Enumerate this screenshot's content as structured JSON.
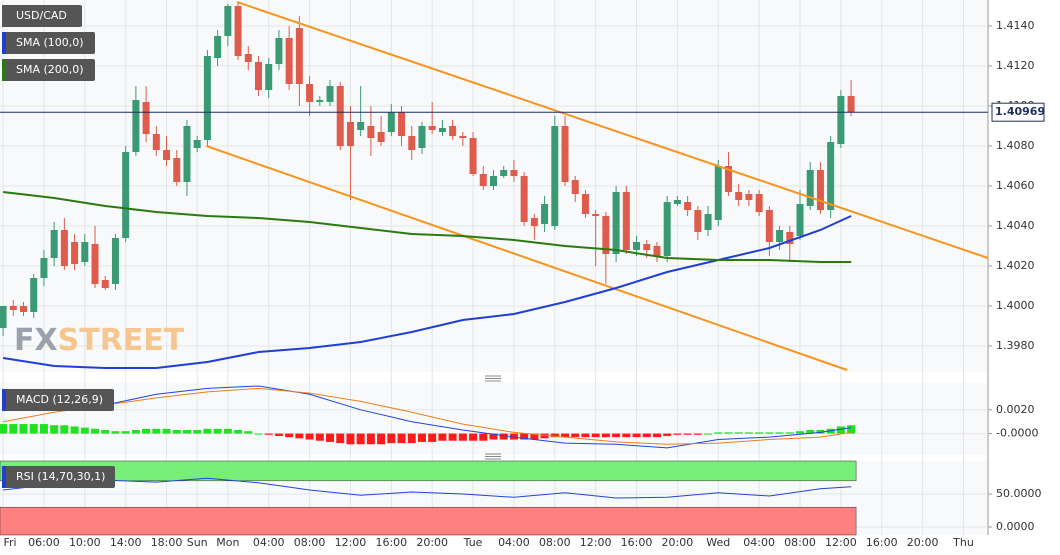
{
  "chart_data": [
    {
      "type": "candlestick",
      "title": "USD/CAD",
      "open": [
        1.3989,
        1.4,
        1.4,
        1.3997,
        1.4014,
        1.4024,
        1.4038,
        1.4032,
        1.4022,
        1.4031,
        1.4013,
        1.4011,
        1.4034,
        1.4077,
        1.4102,
        1.4086,
        1.4078,
        1.4074,
        1.4062,
        1.4079,
        1.4083,
        1.4124,
        1.4135,
        1.415,
        1.4126,
        1.4122,
        1.4108,
        1.4121,
        1.4134,
        1.4139,
        1.4111,
        1.4102,
        1.4102,
        1.411,
        1.4092,
        1.4088,
        1.409,
        1.4087,
        1.4087,
        1.4097,
        1.4085,
        1.4079,
        1.409,
        1.4087,
        1.409,
        1.4085,
        1.4084,
        1.4066,
        1.406,
        1.4065,
        1.4068,
        1.4065,
        1.4044,
        1.4041,
        1.404,
        1.409,
        1.4063,
        1.4056,
        1.4046,
        1.4045,
        1.4026,
        1.4057,
        1.4028,
        1.4031,
        1.403,
        1.4025,
        1.4051,
        1.4052,
        1.4048,
        1.4038,
        1.4043,
        1.407,
        1.4057,
        1.4056,
        1.4056,
        1.4048,
        1.4032,
        1.4037,
        1.4035,
        1.405,
        1.4068,
        1.4048,
        1.4081,
        1.4105
      ],
      "high": [
        1.4,
        1.4003,
        1.4002,
        1.4016,
        1.4028,
        1.4042,
        1.4044,
        1.4036,
        1.4036,
        1.404,
        1.4015,
        1.4036,
        1.408,
        1.411,
        1.411,
        1.409,
        1.4085,
        1.4078,
        1.4093,
        1.4085,
        1.4128,
        1.4138,
        1.4151,
        1.4152,
        1.413,
        1.4125,
        1.4124,
        1.4138,
        1.414,
        1.4145,
        1.4115,
        1.4105,
        1.4113,
        1.4112,
        1.41,
        1.411,
        1.41,
        1.4095,
        1.4101,
        1.41,
        1.409,
        1.4092,
        1.4102,
        1.4093,
        1.4093,
        1.4087,
        1.4087,
        1.407,
        1.4068,
        1.407,
        1.4073,
        1.4067,
        1.4046,
        1.4055,
        1.4095,
        1.4095,
        1.4065,
        1.4058,
        1.4048,
        1.4047,
        1.406,
        1.406,
        1.4035,
        1.4033,
        1.4032,
        1.4055,
        1.4055,
        1.4055,
        1.405,
        1.405,
        1.4073,
        1.4077,
        1.4061,
        1.4058,
        1.4058,
        1.405,
        1.404,
        1.404,
        1.4058,
        1.4072,
        1.4072,
        1.4085,
        1.4108,
        1.4113
      ],
      "low": [
        1.3985,
        1.3995,
        1.3995,
        1.3994,
        1.401,
        1.402,
        1.4018,
        1.4018,
        1.402,
        1.4009,
        1.4008,
        1.4008,
        1.4032,
        1.4075,
        1.4082,
        1.4075,
        1.407,
        1.406,
        1.4055,
        1.4077,
        1.408,
        1.412,
        1.413,
        1.4123,
        1.4118,
        1.4105,
        1.4104,
        1.4118,
        1.4108,
        1.41,
        1.4095,
        1.41,
        1.41,
        1.4078,
        1.4053,
        1.4085,
        1.4075,
        1.408,
        1.4085,
        1.408,
        1.4073,
        1.4076,
        1.4086,
        1.4085,
        1.4083,
        1.408,
        1.4065,
        1.4058,
        1.4058,
        1.4064,
        1.4062,
        1.404,
        1.4033,
        1.4037,
        1.4038,
        1.406,
        1.4052,
        1.4044,
        1.402,
        1.4011,
        1.4022,
        1.4026,
        1.4025,
        1.4024,
        1.4022,
        1.4022,
        1.405,
        1.4045,
        1.4033,
        1.4035,
        1.404,
        1.4055,
        1.405,
        1.405,
        1.4045,
        1.4025,
        1.4028,
        1.4022,
        1.4033,
        1.4048,
        1.4046,
        1.4044,
        1.4079,
        1.4095
      ],
      "close": [
        1.4,
        1.3998,
        1.3997,
        1.4014,
        1.4024,
        1.4038,
        1.402,
        1.4021,
        1.4032,
        1.4011,
        1.4009,
        1.4034,
        1.4077,
        1.4103,
        1.4086,
        1.4078,
        1.4073,
        1.4062,
        1.409,
        1.4083,
        1.4125,
        1.4135,
        1.415,
        1.4125,
        1.4122,
        1.4108,
        1.4121,
        1.4134,
        1.4111,
        1.4111,
        1.4102,
        1.4103,
        1.411,
        1.408,
        1.408,
        1.4092,
        1.4084,
        1.4082,
        1.4097,
        1.4085,
        1.4078,
        1.409,
        1.4088,
        1.4089,
        1.4085,
        1.4084,
        1.4066,
        1.406,
        1.4065,
        1.4068,
        1.4065,
        1.4042,
        1.404,
        1.4051,
        1.409,
        1.4062,
        1.4056,
        1.4046,
        1.4045,
        1.4026,
        1.4057,
        1.4028,
        1.4032,
        1.4028,
        1.4025,
        1.4052,
        1.4053,
        1.4048,
        1.4037,
        1.4046,
        1.407,
        1.4057,
        1.4053,
        1.4053,
        1.4047,
        1.4032,
        1.4038,
        1.4031,
        1.4051,
        1.4068,
        1.4048,
        1.4082,
        1.4105,
        1.4097
      ],
      "color_up": "#3a9a74",
      "color_down": "#dd5c4c",
      "series": [
        {
          "name": "SMA (100,0)",
          "color": "#1f3fd4",
          "x": [
            0,
            5,
            10,
            15,
            20,
            25,
            30,
            35,
            40,
            45,
            50,
            55,
            60,
            65,
            70,
            75,
            80,
            83
          ],
          "values": [
            1.3974,
            1.397,
            1.3969,
            1.3969,
            1.3972,
            1.3977,
            1.3979,
            1.3982,
            1.3987,
            1.3993,
            1.3996,
            1.4002,
            1.4009,
            1.4017,
            1.4023,
            1.4029,
            1.4038,
            1.4045
          ]
        },
        {
          "name": "SMA (200,0)",
          "color": "#2a7a12",
          "x": [
            0,
            5,
            10,
            15,
            20,
            25,
            30,
            35,
            40,
            45,
            50,
            55,
            60,
            65,
            70,
            75,
            80,
            83
          ],
          "values": [
            1.4057,
            1.4054,
            1.405,
            1.4047,
            1.4045,
            1.4044,
            1.4042,
            1.4039,
            1.4036,
            1.4035,
            1.4033,
            1.403,
            1.4028,
            1.4024,
            1.4023,
            1.4023,
            1.4022,
            1.4022
          ]
        }
      ],
      "trendline_color": "#f7941d",
      "trendlines": [
        {
          "x": [
            22.9,
            96.4
          ],
          "values": [
            1.4152,
            1.4024
          ]
        },
        {
          "x": [
            19.9,
            82.6
          ],
          "values": [
            1.408,
            1.3968
          ]
        }
      ],
      "last_price": 1.40969,
      "last_price_color": "#1f2f5c",
      "watermark": [
        "FX",
        "STREET"
      ],
      "xlim": [
        -0.3,
        96.4
      ],
      "ylim": [
        1.3967,
        1.4153
      ],
      "yticks": [
        {
          "value": 1.398,
          "label": "1.3980"
        },
        {
          "value": 1.4,
          "label": "1.4000"
        },
        {
          "value": 1.402,
          "label": "1.4020"
        },
        {
          "value": 1.404,
          "label": "1.4040"
        },
        {
          "value": 1.406,
          "label": "1.4060"
        },
        {
          "value": 1.408,
          "label": "1.4080"
        },
        {
          "value": 1.41,
          "label": "1.4100"
        },
        {
          "value": 1.412,
          "label": "1.4120"
        },
        {
          "value": 1.414,
          "label": "1.4140"
        }
      ],
      "xticks": [
        {
          "value": 0,
          "label": "Fri"
        },
        {
          "value": 4,
          "label": "06:00"
        },
        {
          "value": 8,
          "label": "10:00"
        },
        {
          "value": 12,
          "label": "14:00"
        },
        {
          "value": 16,
          "label": "18:00"
        },
        {
          "value": 19,
          "label": "Sun"
        },
        {
          "value": 22,
          "label": "Mon"
        },
        {
          "value": 26,
          "label": "04:00"
        },
        {
          "value": 30,
          "label": "08:00"
        },
        {
          "value": 34,
          "label": "12:00"
        },
        {
          "value": 38,
          "label": "16:00"
        },
        {
          "value": 42,
          "label": "20:00"
        },
        {
          "value": 46,
          "label": "Tue"
        },
        {
          "value": 50,
          "label": "04:00"
        },
        {
          "value": 54,
          "label": "08:00"
        },
        {
          "value": 58,
          "label": "12:00"
        },
        {
          "value": 62,
          "label": "16:00"
        },
        {
          "value": 66,
          "label": "20:00"
        },
        {
          "value": 70,
          "label": "Wed"
        },
        {
          "value": 74,
          "label": "04:00"
        },
        {
          "value": 78,
          "label": "08:00"
        },
        {
          "value": 82,
          "label": "12:00"
        },
        {
          "value": 86,
          "label": "16:00"
        },
        {
          "value": 90,
          "label": "20:00"
        },
        {
          "value": 94,
          "label": "Thu"
        }
      ],
      "grid": true
    },
    {
      "type": "macd",
      "title": "MACD (12,26,9)",
      "legend_color": "#1f3fd4",
      "histogram": [
        0.0008,
        0.0008,
        0.0008,
        0.0008,
        0.0008,
        0.0007,
        0.0007,
        0.0006,
        0.0005,
        0.0004,
        0.0003,
        0.0002,
        0.0002,
        0.0003,
        0.0004,
        0.0004,
        0.0004,
        0.0003,
        0.0003,
        0.0003,
        0.0004,
        0.0004,
        0.0004,
        0.0003,
        0.0002,
        0,
        -0.0001,
        -0.0002,
        -0.0003,
        -0.0004,
        -0.0005,
        -0.0006,
        -0.0007,
        -0.0008,
        -0.0009,
        -0.0009,
        -0.0009,
        -0.0009,
        -0.0008,
        -0.0008,
        -0.0008,
        -0.0007,
        -0.0007,
        -0.0006,
        -0.0006,
        -0.0006,
        -0.0006,
        -0.0006,
        -0.0005,
        -0.0005,
        -0.0005,
        -0.0005,
        -0.0005,
        -0.0004,
        -0.0003,
        -0.0003,
        -0.0003,
        -0.0003,
        -0.0003,
        -0.0003,
        -0.0003,
        -0.0003,
        -0.0003,
        -0.0003,
        -0.0003,
        -0.0002,
        -0.0001,
        -0.0001,
        -0.0001,
        0,
        0.0001,
        0.0001,
        0.0001,
        0.0001,
        0.0001,
        0.0001,
        0.0001,
        0.0001,
        0.0002,
        0.0003,
        0.0003,
        0.0004,
        0.0006,
        0.0007
      ],
      "up_color": "#22e022",
      "down_color": "#ff1a1a",
      "macd": {
        "color": "#2244dd",
        "x": [
          0,
          5,
          10,
          15,
          20,
          25,
          30,
          35,
          40,
          45,
          50,
          55,
          60,
          65,
          70,
          75,
          80,
          83
        ],
        "values": [
          0.0024,
          0.0025,
          0.0024,
          0.0033,
          0.0038,
          0.004,
          0.0033,
          0.002,
          0.001,
          0.0003,
          -0.0003,
          -0.0008,
          -0.0009,
          -0.0012,
          -0.0005,
          -0.0003,
          0.0001,
          0.0005
        ]
      },
      "signal": {
        "color": "#f07f1a",
        "x": [
          0,
          5,
          10,
          15,
          20,
          25,
          30,
          35,
          40,
          45,
          50,
          55,
          60,
          65,
          70,
          75,
          80,
          83
        ],
        "values": [
          0.001,
          0.0018,
          0.0024,
          0.003,
          0.0035,
          0.0038,
          0.0034,
          0.0027,
          0.0018,
          0.0008,
          0.0001,
          -0.0003,
          -0.0007,
          -0.0009,
          -0.0008,
          -0.0005,
          -0.0003,
          0.0001
        ]
      },
      "xlim": [
        -0.3,
        96.4
      ],
      "ylim": [
        -0.0018,
        0.00425
      ],
      "yticks": [
        {
          "value": 0,
          "label": "-0.0000"
        },
        {
          "value": 0.002,
          "label": "0.0020"
        }
      ],
      "grid": true
    },
    {
      "type": "rsi",
      "title": "RSI (14,70,30,1)",
      "legend_color": "#1f3fd4",
      "color": "#2244dd",
      "x": [
        0,
        5,
        10,
        15,
        20,
        25,
        30,
        35,
        40,
        45,
        50,
        55,
        60,
        65,
        70,
        75,
        80,
        83
      ],
      "values": [
        56,
        65,
        71,
        68,
        74,
        67,
        56,
        48,
        53,
        50,
        45,
        52,
        44,
        45,
        52,
        47,
        58,
        61
      ],
      "overbought": 70,
      "oversold": 30,
      "overbought_color": "#77ee77",
      "oversold_color": "#ff8080",
      "xlim": [
        -0.3,
        96.4
      ],
      "ylim": [
        -12.1,
        100
      ],
      "yticks": [
        {
          "value": 0,
          "label": "0.0000"
        },
        {
          "value": 50,
          "label": "50.0000"
        }
      ],
      "grid": true
    }
  ]
}
